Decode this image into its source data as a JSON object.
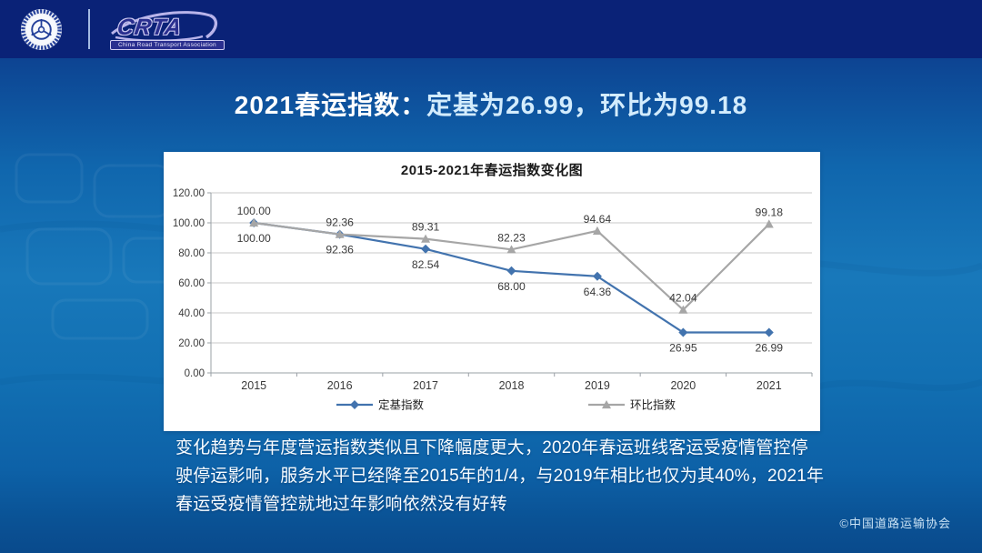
{
  "topbar": {
    "crta_logo_text": "CRTA",
    "crta_logo_subtitle": "China Road Transport Association"
  },
  "title": {
    "prefix": "2021春运指数：",
    "rest": "定基为26.99，环比为99.18"
  },
  "chart_data": {
    "type": "line",
    "title": "2015-2021年春运指数变化图",
    "categories": [
      "2015",
      "2016",
      "2017",
      "2018",
      "2019",
      "2020",
      "2021"
    ],
    "series": [
      {
        "name": "定基指数",
        "marker": "diamond",
        "color": "#4273ae",
        "label_position": "below",
        "values": [
          100.0,
          92.36,
          82.54,
          68.0,
          64.36,
          26.95,
          26.99
        ]
      },
      {
        "name": "环比指数",
        "marker": "triangle",
        "color": "#a6a6a6",
        "label_position": "above",
        "values": [
          100.0,
          92.36,
          89.31,
          82.23,
          94.64,
          42.04,
          99.18
        ]
      }
    ],
    "ylim": [
      0,
      120
    ],
    "ytick_step": 20,
    "value_format": "2dp",
    "grid": true,
    "legend_position": "bottom",
    "grid_color": "#c9c9c9",
    "axis_color": "#9aa0a6",
    "label_color": "#3a3a3a"
  },
  "body_text": "变化趋势与年度营运指数类似且下降幅度更大，2020年春运班线客运受疫情管控停驶停运影响，服务水平已经降至2015年的1/4，与2019年相比也仅为其40%，2021年春运受疫情管控就地过年影响依然没有好转",
  "footer": {
    "copyright": "©中国道路运输协会"
  }
}
